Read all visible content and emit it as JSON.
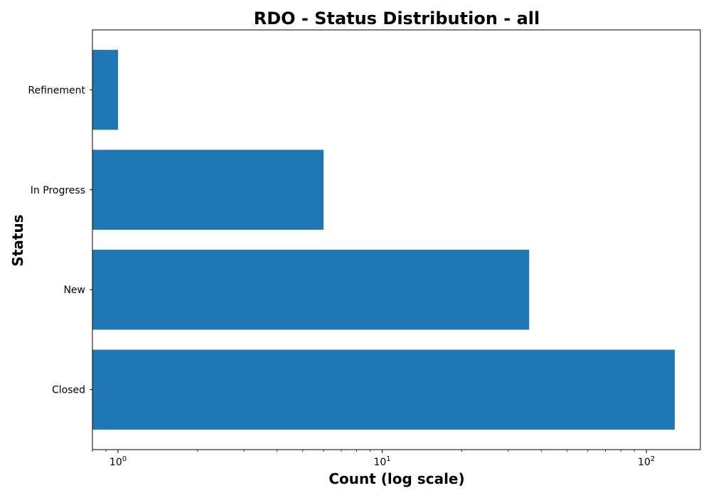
{
  "chart_data": {
    "type": "bar",
    "orientation": "horizontal",
    "title": "RDO - Status Distribution - all",
    "xlabel": "Count (log scale)",
    "ylabel": "Status",
    "xscale": "log",
    "xlim": [
      0.8,
      160
    ],
    "categories": [
      "Closed",
      "New",
      "In Progress",
      "Refinement"
    ],
    "values": [
      128,
      36,
      6,
      1
    ],
    "x_ticks": [
      {
        "base": "10",
        "exp": "0",
        "value": 1
      },
      {
        "base": "10",
        "exp": "1",
        "value": 10
      },
      {
        "base": "10",
        "exp": "2",
        "value": 100
      }
    ],
    "bar_color": "#1f77b4",
    "grid": false,
    "legend": "none"
  }
}
